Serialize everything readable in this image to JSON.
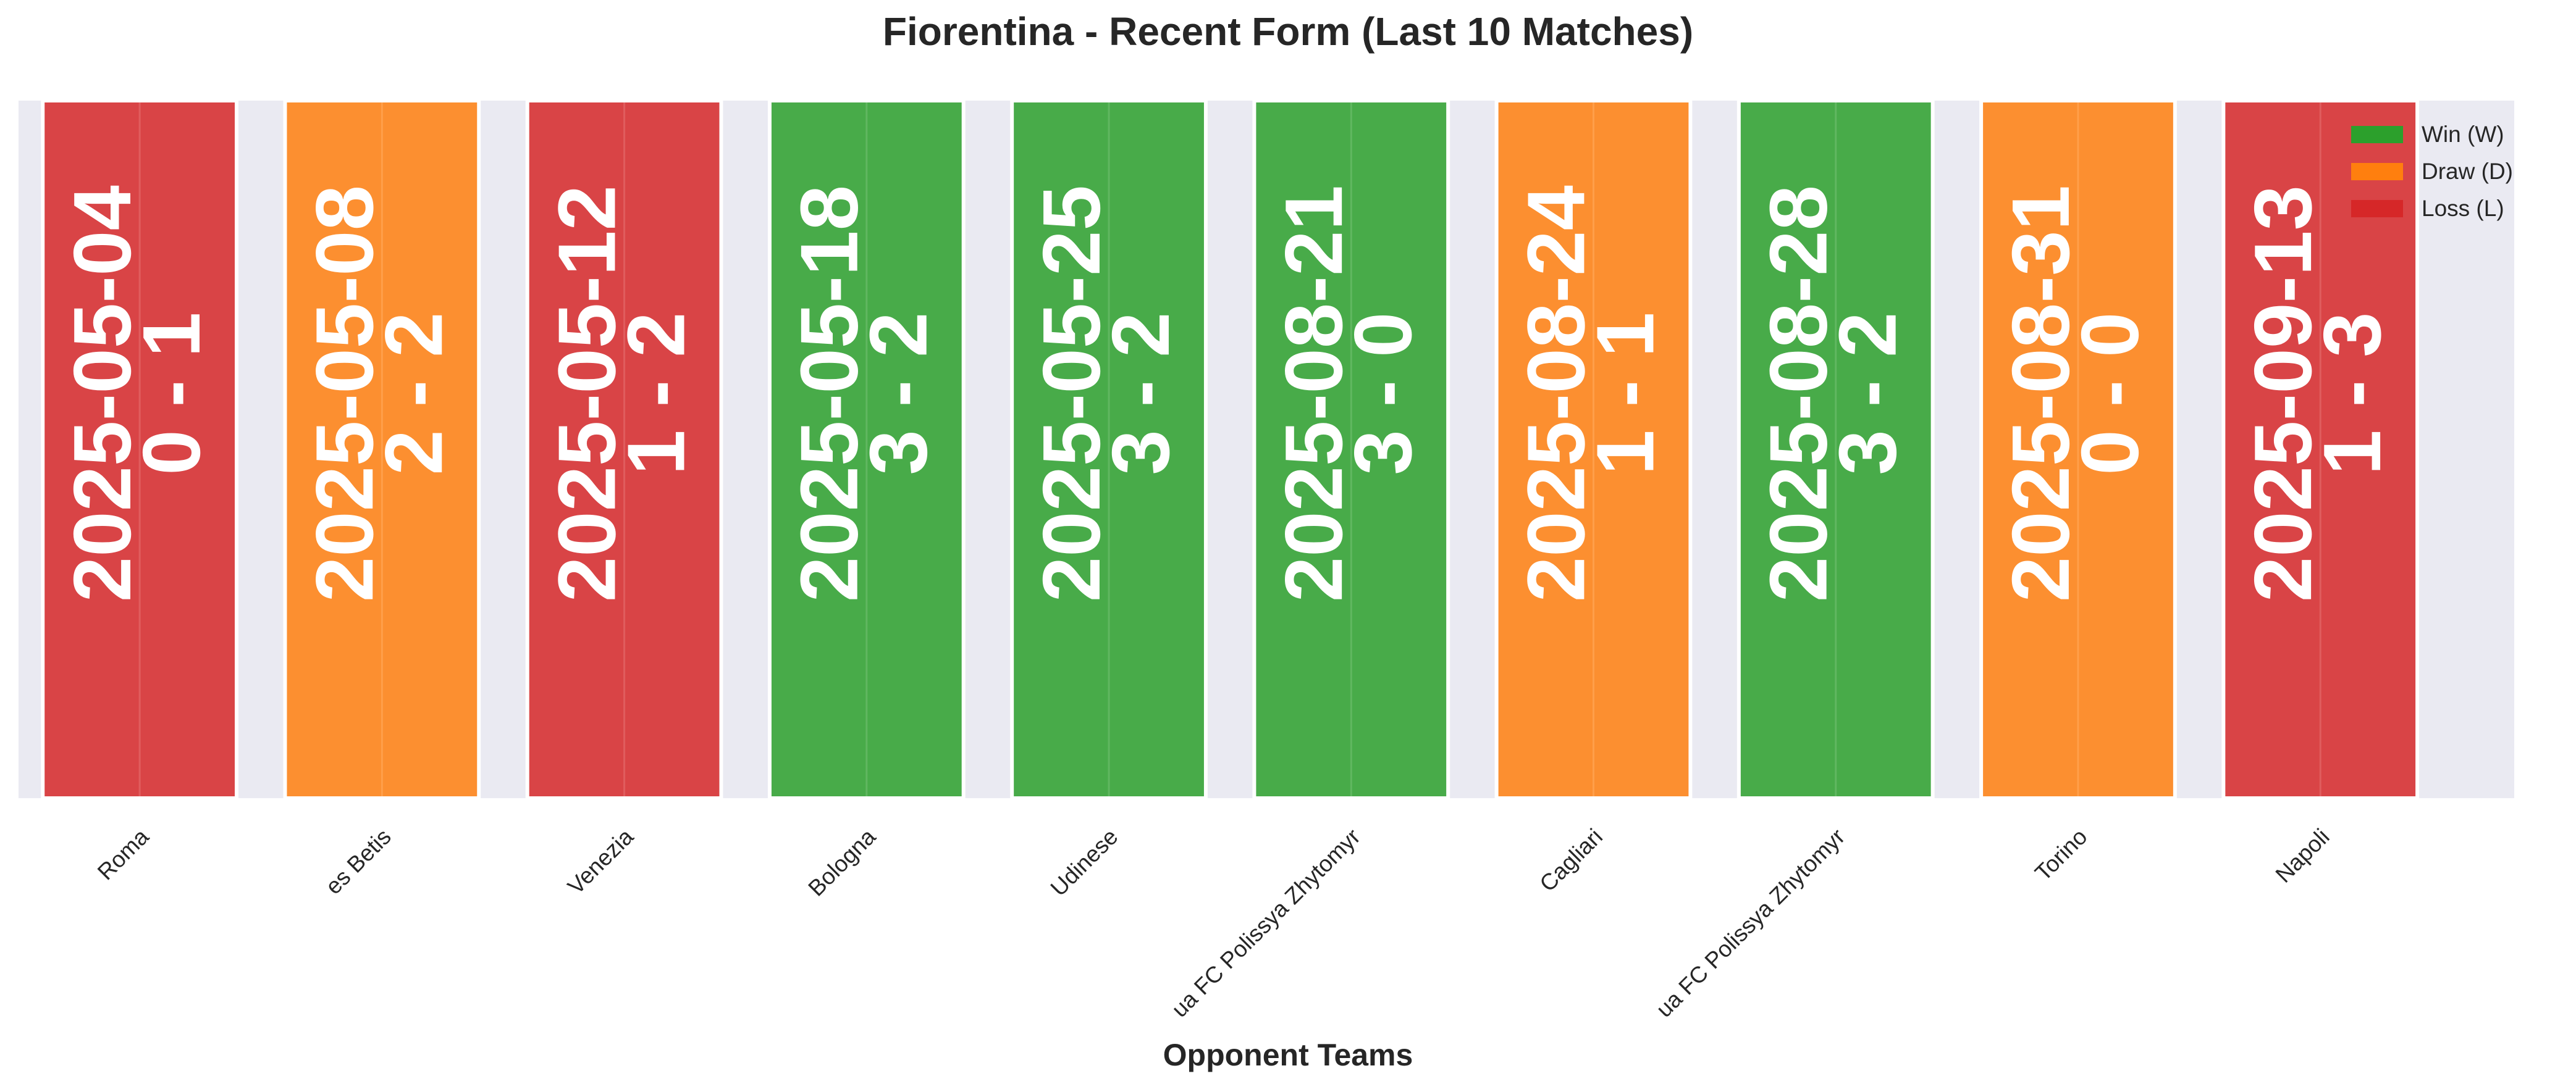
{
  "title": "Fiorentina - Recent Form (Last 10 Matches)",
  "chart_data": {
    "type": "bar",
    "title": "Fiorentina - Recent Form (Last 10 Matches)",
    "xlabel": "Opponent Teams",
    "ylabel": "",
    "grid": true,
    "legend_position": "top-right",
    "categories": [
      "Roma",
      "es Betis",
      "Venezia",
      "Bologna",
      "Udinese",
      "ua FC Polissya Zhytomyr",
      "Cagliari",
      "ua FC Polissya Zhytomyr",
      "Torino",
      "Napoli"
    ],
    "values": [
      1,
      1,
      1,
      1,
      1,
      1,
      1,
      1,
      1,
      1
    ],
    "results": [
      "L",
      "D",
      "L",
      "W",
      "W",
      "W",
      "D",
      "W",
      "D",
      "L"
    ],
    "dates": [
      "2025-05-04",
      "2025-05-08",
      "2025-05-12",
      "2025-05-18",
      "2025-05-25",
      "2025-08-21",
      "2025-08-24",
      "2025-08-28",
      "2025-08-31",
      "2025-09-13"
    ],
    "scores": [
      "0 - 1",
      "2 - 2",
      "1 - 2",
      "3 - 2",
      "3 - 2",
      "3 - 0",
      "1 - 1",
      "3 - 2",
      "0 - 0",
      "1 - 3"
    ],
    "legend": [
      {
        "key": "W",
        "label": "Win (W)",
        "color": "#2ca02c"
      },
      {
        "key": "D",
        "label": "Draw (D)",
        "color": "#ff7f0e"
      },
      {
        "key": "L",
        "label": "Loss (L)",
        "color": "#d62728"
      }
    ],
    "colors": {
      "W": "#2ca02c",
      "D": "#ff7f0e",
      "L": "#d62728",
      "background": "#eaeaf2",
      "bar_opacity": 0.85
    }
  }
}
